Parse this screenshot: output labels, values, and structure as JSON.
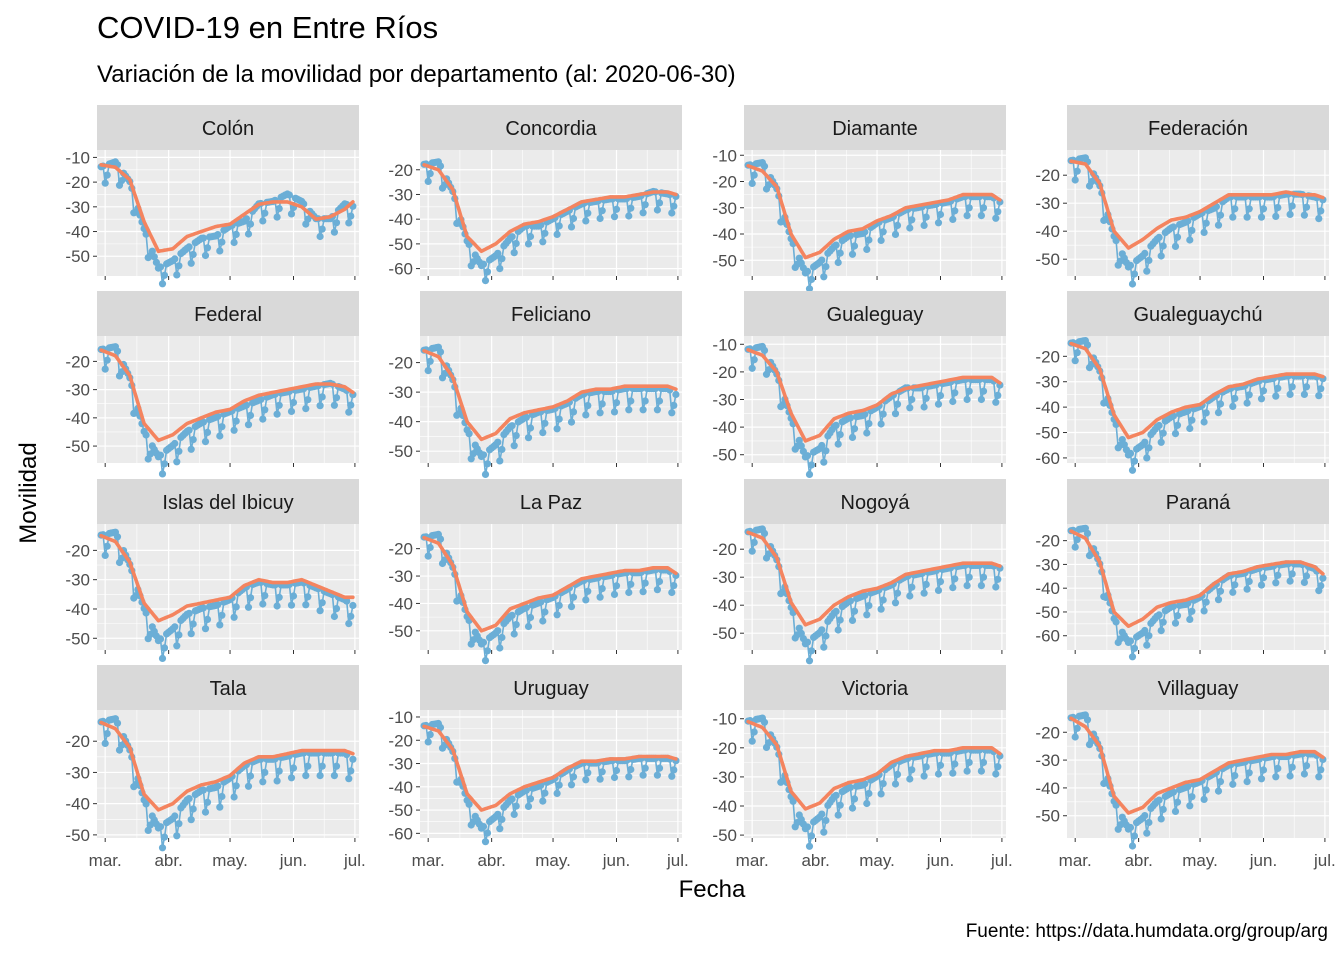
{
  "chart_data": {
    "type": "line",
    "title": "COVID-19 en Entre Ríos",
    "subtitle": "Variación de la movilidad por departamento (al: 2020-06-30)",
    "xlabel": "Fecha",
    "ylabel": "Movilidad",
    "caption": "Fuente: https://data.humdata.org/group/arg",
    "x_ticks": [
      "mar.",
      "abr.",
      "may.",
      "jun.",
      "jul."
    ],
    "x_tick_dates": [
      "2020-03-01",
      "2020-04-01",
      "2020-05-01",
      "2020-06-01",
      "2020-07-01"
    ],
    "x_range": [
      "2020-02-26",
      "2020-07-03"
    ],
    "grid": true,
    "colors": {
      "points": "#6baed6",
      "smooth": "#f4845f",
      "panel_bg": "#ebebeb",
      "strip_bg": "#d9d9d9"
    },
    "series_dates": [
      "2020-02-28",
      "2020-03-06",
      "2020-03-13",
      "2020-03-20",
      "2020-03-27",
      "2020-04-03",
      "2020-04-10",
      "2020-04-17",
      "2020-04-24",
      "2020-05-01",
      "2020-05-08",
      "2020-05-15",
      "2020-05-22",
      "2020-05-29",
      "2020-06-05",
      "2020-06-12",
      "2020-06-19",
      "2020-06-26",
      "2020-06-30"
    ],
    "panels": [
      {
        "name": "Colón",
        "yticks": [
          -10,
          -20,
          -30,
          -40,
          -50
        ],
        "ylim": [
          -58,
          -7
        ],
        "smooth": [
          -13,
          -14,
          -19,
          -36,
          -48,
          -47,
          -42,
          -40,
          -38,
          -37,
          -33,
          -29,
          -28,
          -28,
          -30,
          -35,
          -34,
          -31,
          -28
        ],
        "points": [
          -15,
          -13,
          -21,
          -40,
          -56,
          -53,
          -48,
          -44,
          -43,
          -39,
          -37,
          -30,
          -29,
          -26,
          -29,
          -36,
          -36,
          -30,
          -31
        ]
      },
      {
        "name": "Concordia",
        "yticks": [
          -20,
          -30,
          -40,
          -50,
          -60
        ],
        "ylim": [
          -63,
          -12
        ],
        "smooth": [
          -18,
          -20,
          -28,
          -47,
          -53,
          -50,
          -45,
          -42,
          -41,
          -39,
          -36,
          -33,
          -32,
          -31,
          -31,
          -30,
          -29,
          -29,
          -30
        ],
        "points": [
          -19,
          -18,
          -30,
          -50,
          -60,
          -56,
          -49,
          -44,
          -44,
          -41,
          -38,
          -35,
          -34,
          -33,
          -33,
          -32,
          -30,
          -31,
          -32
        ]
      },
      {
        "name": "Diamante",
        "yticks": [
          -10,
          -20,
          -30,
          -40,
          -50
        ],
        "ylim": [
          -56,
          -8
        ],
        "smooth": [
          -14,
          -16,
          -22,
          -40,
          -49,
          -47,
          -42,
          -39,
          -38,
          -35,
          -33,
          -30,
          -29,
          -28,
          -27,
          -25,
          -25,
          -25,
          -27
        ],
        "points": [
          -15,
          -14,
          -24,
          -43,
          -56,
          -52,
          -46,
          -42,
          -41,
          -37,
          -35,
          -32,
          -31,
          -30,
          -29,
          -27,
          -27,
          -27,
          -29
        ]
      },
      {
        "name": "Federación",
        "yticks": [
          -20,
          -30,
          -40,
          -50
        ],
        "ylim": [
          -56,
          -11
        ],
        "smooth": [
          -15,
          -16,
          -23,
          -40,
          -46,
          -43,
          -39,
          -36,
          -35,
          -33,
          -30,
          -27,
          -27,
          -27,
          -27,
          -26,
          -27,
          -27,
          -28
        ],
        "points": [
          -16,
          -15,
          -25,
          -43,
          -54,
          -50,
          -44,
          -40,
          -38,
          -35,
          -33,
          -29,
          -29,
          -29,
          -29,
          -28,
          -28,
          -29,
          -30
        ]
      },
      {
        "name": "Federal",
        "yticks": [
          -20,
          -30,
          -40,
          -50
        ],
        "ylim": [
          -56,
          -11
        ],
        "smooth": [
          -16,
          -18,
          -25,
          -42,
          -48,
          -46,
          -42,
          -40,
          -38,
          -37,
          -34,
          -32,
          -31,
          -30,
          -29,
          -28,
          -28,
          -29,
          -31
        ],
        "points": [
          -17,
          -16,
          -27,
          -46,
          -55,
          -51,
          -46,
          -43,
          -41,
          -39,
          -37,
          -35,
          -33,
          -32,
          -31,
          -30,
          -29,
          -31,
          -33
        ]
      },
      {
        "name": "Feliciano",
        "yticks": [
          -20,
          -30,
          -40,
          -50
        ],
        "ylim": [
          -54,
          -11
        ],
        "smooth": [
          -16,
          -18,
          -25,
          -40,
          -46,
          -44,
          -39,
          -37,
          -36,
          -35,
          -33,
          -30,
          -29,
          -29,
          -28,
          -28,
          -28,
          -28,
          -29
        ],
        "points": [
          -17,
          -16,
          -27,
          -44,
          -53,
          -49,
          -43,
          -40,
          -38,
          -37,
          -35,
          -32,
          -31,
          -31,
          -30,
          -30,
          -30,
          -30,
          -32
        ]
      },
      {
        "name": "Gualeguay",
        "yticks": [
          -10,
          -20,
          -30,
          -40,
          -50
        ],
        "ylim": [
          -53,
          -7
        ],
        "smooth": [
          -12,
          -14,
          -20,
          -35,
          -45,
          -43,
          -37,
          -35,
          -34,
          -32,
          -28,
          -26,
          -25,
          -24,
          -23,
          -22,
          -22,
          -22,
          -24
        ],
        "points": [
          -13,
          -12,
          -22,
          -38,
          -52,
          -49,
          -41,
          -38,
          -37,
          -34,
          -30,
          -27,
          -27,
          -26,
          -25,
          -24,
          -24,
          -24,
          -26
        ]
      },
      {
        "name": "Gualeguaychú",
        "yticks": [
          -20,
          -30,
          -40,
          -50,
          -60
        ],
        "ylim": [
          -62,
          -12
        ],
        "smooth": [
          -15,
          -17,
          -25,
          -43,
          -52,
          -50,
          -45,
          -42,
          -40,
          -39,
          -35,
          -32,
          -31,
          -29,
          -28,
          -27,
          -27,
          -27,
          -28
        ],
        "points": [
          -16,
          -15,
          -27,
          -46,
          -60,
          -56,
          -49,
          -45,
          -43,
          -41,
          -37,
          -34,
          -33,
          -31,
          -30,
          -29,
          -29,
          -29,
          -30
        ]
      },
      {
        "name": "Islas del Ibicuy",
        "yticks": [
          -20,
          -30,
          -40,
          -50
        ],
        "ylim": [
          -54,
          -11
        ],
        "smooth": [
          -15,
          -17,
          -24,
          -38,
          -44,
          -42,
          -39,
          -38,
          -37,
          -36,
          -32,
          -30,
          -31,
          -31,
          -30,
          -32,
          -34,
          -36,
          -36
        ],
        "points": [
          -16,
          -15,
          -26,
          -41,
          -52,
          -48,
          -43,
          -41,
          -40,
          -38,
          -34,
          -32,
          -33,
          -33,
          -32,
          -34,
          -36,
          -38,
          -40
        ]
      },
      {
        "name": "La Paz",
        "yticks": [
          -20,
          -30,
          -40,
          -50
        ],
        "ylim": [
          -57,
          -11
        ],
        "smooth": [
          -16,
          -18,
          -26,
          -43,
          -50,
          -48,
          -42,
          -40,
          -38,
          -37,
          -34,
          -31,
          -30,
          -29,
          -28,
          -28,
          -27,
          -27,
          -29
        ],
        "points": [
          -17,
          -16,
          -28,
          -46,
          -56,
          -52,
          -46,
          -43,
          -41,
          -39,
          -36,
          -33,
          -32,
          -31,
          -30,
          -30,
          -29,
          -29,
          -31
        ]
      },
      {
        "name": "Nogoyá",
        "yticks": [
          -20,
          -30,
          -40,
          -50
        ],
        "ylim": [
          -56,
          -11
        ],
        "smooth": [
          -14,
          -16,
          -23,
          -39,
          -47,
          -45,
          -40,
          -37,
          -35,
          -34,
          -32,
          -29,
          -28,
          -27,
          -26,
          -25,
          -25,
          -25,
          -26
        ],
        "points": [
          -15,
          -14,
          -25,
          -42,
          -55,
          -51,
          -44,
          -40,
          -38,
          -36,
          -34,
          -31,
          -30,
          -29,
          -28,
          -27,
          -27,
          -27,
          -28
        ]
      },
      {
        "name": "Paraná",
        "yticks": [
          -20,
          -30,
          -40,
          -50,
          -60
        ],
        "ylim": [
          -66,
          -13
        ],
        "smooth": [
          -16,
          -19,
          -29,
          -50,
          -56,
          -53,
          -48,
          -46,
          -45,
          -43,
          -38,
          -34,
          -33,
          -31,
          -30,
          -29,
          -29,
          -31,
          -34
        ],
        "points": [
          -17,
          -16,
          -31,
          -54,
          -64,
          -60,
          -53,
          -49,
          -48,
          -45,
          -40,
          -36,
          -35,
          -33,
          -32,
          -31,
          -31,
          -33,
          -37
        ]
      },
      {
        "name": "Tala",
        "yticks": [
          -20,
          -30,
          -40,
          -50
        ],
        "ylim": [
          -51,
          -10
        ],
        "smooth": [
          -14,
          -16,
          -22,
          -37,
          -42,
          -40,
          -36,
          -34,
          -33,
          -31,
          -27,
          -25,
          -25,
          -24,
          -23,
          -23,
          -23,
          -23,
          -24
        ],
        "points": [
          -15,
          -14,
          -24,
          -40,
          -49,
          -46,
          -40,
          -37,
          -36,
          -33,
          -29,
          -27,
          -27,
          -26,
          -25,
          -25,
          -25,
          -25,
          -27
        ]
      },
      {
        "name": "Uruguay",
        "yticks": [
          -10,
          -20,
          -30,
          -40,
          -50,
          -60
        ],
        "ylim": [
          -62,
          -7
        ],
        "smooth": [
          -14,
          -16,
          -24,
          -43,
          -50,
          -48,
          -43,
          -40,
          -38,
          -36,
          -32,
          -29,
          -29,
          -28,
          -28,
          -27,
          -27,
          -27,
          -28
        ],
        "points": [
          -15,
          -14,
          -26,
          -47,
          -59,
          -54,
          -47,
          -43,
          -41,
          -38,
          -34,
          -31,
          -31,
          -30,
          -30,
          -29,
          -29,
          -29,
          -30
        ]
      },
      {
        "name": "Victoria",
        "yticks": [
          -10,
          -20,
          -30,
          -40,
          -50
        ],
        "ylim": [
          -51,
          -7
        ],
        "smooth": [
          -11,
          -13,
          -19,
          -35,
          -41,
          -39,
          -34,
          -32,
          -31,
          -29,
          -25,
          -23,
          -22,
          -21,
          -21,
          -20,
          -20,
          -20,
          -22
        ],
        "points": [
          -12,
          -11,
          -21,
          -38,
          -49,
          -45,
          -38,
          -35,
          -34,
          -31,
          -27,
          -25,
          -24,
          -23,
          -23,
          -22,
          -22,
          -22,
          -24
        ]
      },
      {
        "name": "Villaguay",
        "yticks": [
          -20,
          -30,
          -40,
          -50
        ],
        "ylim": [
          -58,
          -12
        ],
        "smooth": [
          -15,
          -18,
          -25,
          -43,
          -49,
          -47,
          -42,
          -40,
          -38,
          -37,
          -34,
          -31,
          -30,
          -29,
          -28,
          -28,
          -27,
          -27,
          -29
        ],
        "points": [
          -16,
          -15,
          -27,
          -46,
          -56,
          -52,
          -46,
          -43,
          -41,
          -39,
          -36,
          -33,
          -32,
          -31,
          -30,
          -30,
          -29,
          -29,
          -31
        ]
      }
    ]
  }
}
